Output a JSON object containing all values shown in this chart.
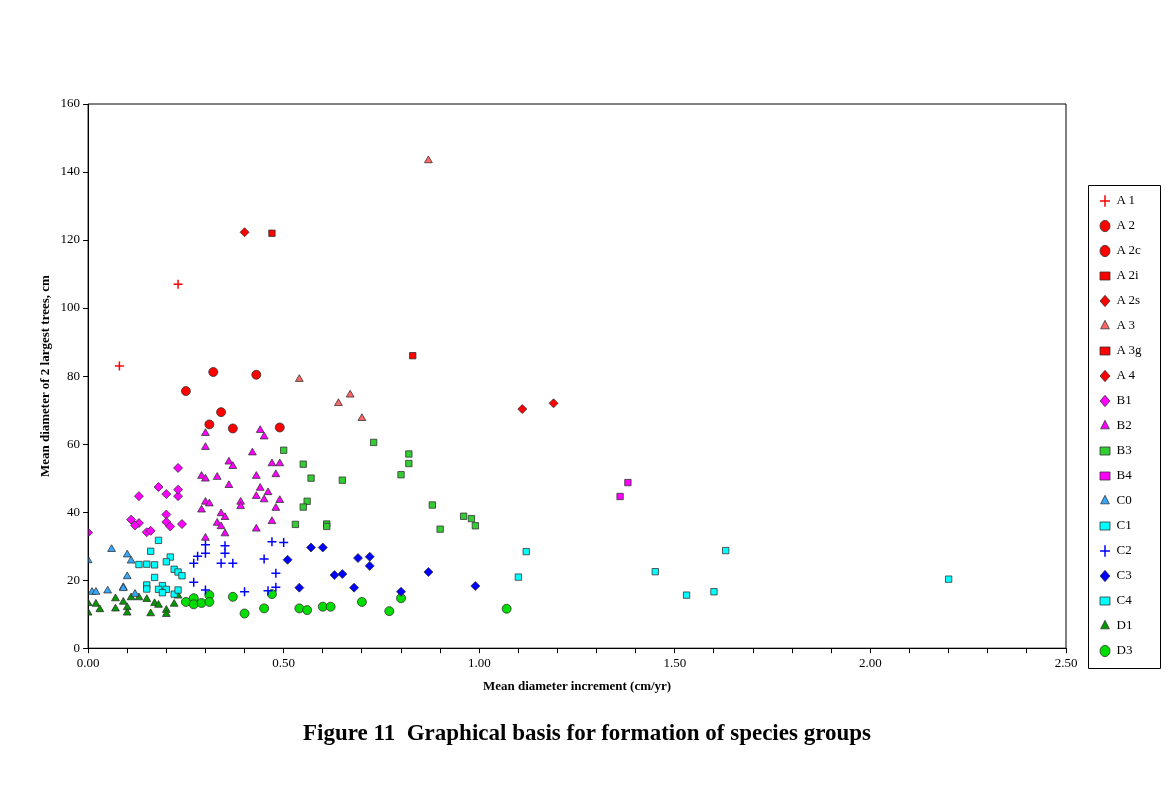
{
  "chart_data": {
    "type": "scatter",
    "title": "Figure 11  Graphical basis for formation of species groups",
    "xlabel": "Mean diameter increment (cm/yr)",
    "ylabel": "Mean diameter of 2 largest trees, cm",
    "xlim": [
      0,
      2.5
    ],
    "ylim": [
      0,
      160
    ],
    "xticks": [
      {
        "value": 0,
        "label": "0.00"
      },
      {
        "value": 0.1,
        "label": null
      },
      {
        "value": 0.2,
        "label": null
      },
      {
        "value": 0.3,
        "label": null
      },
      {
        "value": 0.4,
        "label": null
      },
      {
        "value": 0.5,
        "label": "0.50"
      },
      {
        "value": 0.6,
        "label": null
      },
      {
        "value": 0.7,
        "label": null
      },
      {
        "value": 0.8,
        "label": null
      },
      {
        "value": 0.9,
        "label": null
      },
      {
        "value": 1,
        "label": "1.00"
      },
      {
        "value": 1.1,
        "label": null
      },
      {
        "value": 1.2,
        "label": null
      },
      {
        "value": 1.3,
        "label": null
      },
      {
        "value": 1.4,
        "label": null
      },
      {
        "value": 1.5,
        "label": "1.50"
      },
      {
        "value": 1.6,
        "label": null
      },
      {
        "value": 1.7,
        "label": null
      },
      {
        "value": 1.8,
        "label": null
      },
      {
        "value": 1.9,
        "label": null
      },
      {
        "value": 2,
        "label": "2.00"
      },
      {
        "value": 2.1,
        "label": null
      },
      {
        "value": 2.2,
        "label": null
      },
      {
        "value": 2.3,
        "label": null
      },
      {
        "value": 2.4,
        "label": null
      },
      {
        "value": 2.5,
        "label": "2.50"
      }
    ],
    "yticks": [
      0,
      20,
      40,
      60,
      80,
      100,
      120,
      140,
      160
    ],
    "grid": false,
    "legend": "right",
    "series": [
      {
        "name": "A 1",
        "color": "#ff0000",
        "marker": "cross",
        "x": [
          0.08,
          0.23
        ],
        "values": [
          83,
          107
        ]
      },
      {
        "name": "A 2",
        "color": "#ff0000",
        "marker": "circle",
        "x": [
          0.25,
          0.32,
          0.34,
          0.31,
          0.37,
          0.49
        ],
        "values": [
          75.6,
          81.2,
          69.4,
          65.8,
          64.6,
          64.9
        ]
      },
      {
        "name": "A 2c",
        "color": "#ff0000",
        "marker": "circle",
        "x": [
          0.43
        ],
        "values": [
          80.4
        ]
      },
      {
        "name": "A 2i",
        "color": "#ff0000",
        "marker": "square",
        "x": [
          0.47
        ],
        "values": [
          122
        ]
      },
      {
        "name": "A 2s",
        "color": "#ff0000",
        "marker": "diamond",
        "x": [
          0.4
        ],
        "values": [
          122.3
        ]
      },
      {
        "name": "A 3",
        "color": "#ff6666",
        "marker": "triangle",
        "x": [
          0.87,
          0.54,
          0.64,
          0.67,
          0.7
        ],
        "values": [
          143.4,
          79.1,
          72,
          74.5,
          67.6
        ]
      },
      {
        "name": "A 3g",
        "color": "#ff0000",
        "marker": "square",
        "x": [
          0.83
        ],
        "values": [
          86
        ]
      },
      {
        "name": "A 4",
        "color": "#ff0000",
        "marker": "diamond",
        "x": [
          1.11,
          1.19
        ],
        "values": [
          70.3,
          72
        ]
      },
      {
        "name": "B1",
        "color": "#ff00ff",
        "marker": "diamond",
        "x": [
          0,
          0.11,
          0.13,
          0.12,
          0.15,
          0.16,
          0.13,
          0.18,
          0.2,
          0.23,
          0.23,
          0.2,
          0.2,
          0.21,
          0.24,
          0.23
        ],
        "values": [
          34,
          37.8,
          36.8,
          36.1,
          34.1,
          34.5,
          44.7,
          47.4,
          45.3,
          44.7,
          46.6,
          39.3,
          37.1,
          35.8,
          36.5,
          53
        ]
      },
      {
        "name": "B2",
        "color": "#ff00ff",
        "marker": "triangle",
        "x": [
          0.3,
          0.3,
          0.44,
          0.45,
          0.42,
          0.36,
          0.37,
          0.47,
          0.49,
          0.29,
          0.3,
          0.33,
          0.43,
          0.48,
          0.36,
          0.44,
          0.46,
          0.43,
          0.45,
          0.49,
          0.48,
          0.39,
          0.39,
          0.3,
          0.31,
          0.29,
          0.34,
          0.35,
          0.33,
          0.34,
          0.35,
          0.47,
          0.43,
          0.3
        ],
        "values": [
          63.2,
          59.1,
          64.1,
          62.2,
          57.5,
          54.8,
          53.5,
          54.3,
          54.3,
          50.6,
          49.8,
          50.3,
          50.6,
          51.1,
          47.9,
          47.1,
          45.8,
          44.7,
          43.7,
          43.5,
          41.2,
          43,
          41.7,
          43,
          42.5,
          40.7,
          39.6,
          38.5,
          36.8,
          35.8,
          33.7,
          37.3,
          35.1,
          32.4
        ]
      },
      {
        "name": "B3",
        "color": "#33cc33",
        "marker": "square",
        "x": [
          0.5,
          0.55,
          0.57,
          0.65,
          0.56,
          0.55,
          0.53,
          0.61,
          0.61,
          0.73,
          0.82,
          0.82,
          0.8,
          0.88,
          0.96,
          0.98,
          0.99,
          0.9
        ],
        "values": [
          58.2,
          54.1,
          50,
          49.4,
          43.2,
          41.5,
          36.4,
          36.5,
          35.8,
          60.5,
          57.1,
          54.3,
          51,
          42.1,
          38.8,
          38.1,
          36,
          35
        ]
      },
      {
        "name": "B4",
        "color": "#ff00ff",
        "marker": "square",
        "x": [
          1.38,
          1.36
        ],
        "values": [
          48.7,
          44.6
        ]
      },
      {
        "name": "C0",
        "color": "#33aaff",
        "marker": "triangle",
        "x": [
          0,
          0.06,
          0.1,
          0.11,
          0.1,
          0.09,
          0.09,
          0.01,
          0.02,
          0.05,
          0.12
        ],
        "values": [
          25.8,
          29.1,
          27.5,
          25.7,
          21.1,
          17.9,
          17.6,
          16.5,
          16.5,
          16.9,
          15.9
        ]
      },
      {
        "name": "C1",
        "color": "#00ffff",
        "marker": "square",
        "x": [
          0.18,
          0.16,
          0.13,
          0.15,
          0.17,
          0.21,
          0.2,
          0.22,
          0.23,
          0.24,
          0.17,
          0.15,
          0.15,
          0.19,
          0.18,
          0.2,
          0.19,
          0.22,
          0.23
        ],
        "values": [
          31.7,
          28.5,
          24.6,
          24.7,
          24.5,
          26.8,
          25.4,
          23.2,
          22.4,
          21.3,
          20.8,
          18.6,
          17.4,
          18.4,
          17.3,
          17.3,
          16.3,
          15.9,
          17.1
        ]
      },
      {
        "name": "C2",
        "color": "#0000ff",
        "marker": "cross",
        "x": [
          0.3,
          0.3,
          0.28,
          0.27,
          0.35,
          0.35,
          0.34,
          0.37,
          0.27,
          0.3,
          0.4,
          0.45,
          0.47,
          0.5,
          0.48,
          0.48,
          0.46
        ],
        "values": [
          30.4,
          27.9,
          27,
          25,
          30.1,
          27.9,
          25,
          25,
          19.4,
          17.1,
          16.6,
          26.2,
          31.3,
          31.1,
          22,
          17.9,
          16.9
        ]
      },
      {
        "name": "C3",
        "color": "#0000ff",
        "marker": "diamond",
        "x": [
          0.51,
          0.57,
          0.6,
          0.54,
          0.63,
          0.65,
          0.68,
          0.69,
          0.72,
          0.72,
          0.87,
          0.8,
          0.99
        ],
        "values": [
          26,
          29.6,
          29.6,
          17.8,
          21.5,
          21.8,
          17.8,
          26.5,
          26.9,
          24.2,
          22.4,
          16.6,
          18.3
        ]
      },
      {
        "name": "C4",
        "color": "#00ffff",
        "marker": "square",
        "x": [
          1.12,
          1.1,
          1.45,
          1.53,
          1.6,
          1.63,
          2.2
        ],
        "values": [
          28.4,
          20.9,
          22.5,
          15.6,
          16.6,
          28.7,
          20.3
        ]
      },
      {
        "name": "D1",
        "color": "#009900",
        "marker": "triangle",
        "x": [
          0,
          0,
          0.02,
          0.03,
          0.07,
          0.07,
          0.09,
          0.1,
          0.1,
          0.11,
          0.13,
          0.15,
          0.17,
          0.18,
          0.16,
          0.2,
          0.2,
          0.22,
          0.23
        ],
        "values": [
          13.2,
          10.4,
          13,
          11.4,
          14.6,
          11.6,
          13.6,
          12,
          10.4,
          14.9,
          14.9,
          14.4,
          13.2,
          12.7,
          10.2,
          11.2,
          10,
          13,
          15.4
        ]
      },
      {
        "name": "D3",
        "color": "#00dd00",
        "marker": "circle",
        "x": [
          0.25,
          0.27,
          0.27,
          0.29,
          0.31,
          0.31,
          0.37,
          0.4,
          0.45,
          0.47,
          0.54,
          0.56,
          0.6,
          0.62,
          0.7,
          0.77,
          0.8,
          1.07
        ],
        "values": [
          13.6,
          14.7,
          12.9,
          13.3,
          15.6,
          13.6,
          15.1,
          10.2,
          11.7,
          15.9,
          11.7,
          11.2,
          12.2,
          12.2,
          13.6,
          10.9,
          14.7,
          11.6
        ]
      }
    ]
  }
}
